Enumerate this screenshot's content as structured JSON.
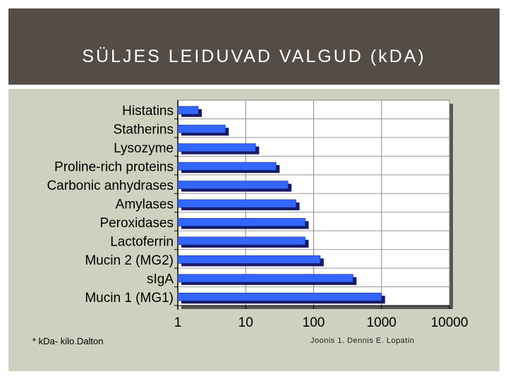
{
  "slide": {
    "title": "SÜLJES LEIDUVAD VALGUD (kDA)",
    "footnote": "* kDa- kilo.Dalton",
    "source": "Joonis 1. Dennis E. Lopatin"
  },
  "colors": {
    "header_bg": "#534c47",
    "panel_bg": "#cfd1c0",
    "plot_bg": "#ffffff",
    "bar_fill": "#3366ff",
    "bar_shadow": "#1a1a66"
  },
  "chart_data": {
    "type": "bar",
    "orientation": "horizontal",
    "x_scale": "log",
    "xlim": [
      1,
      10000
    ],
    "x_ticks": [
      "1",
      "10",
      "100",
      "1000",
      "10000"
    ],
    "grid": true,
    "legend": "none",
    "categories": [
      "Histatins",
      "Statherins",
      "Lysozyme",
      "Proline-rich proteins",
      "Carbonic anhydrases",
      "Amylases",
      "Peroxidases",
      "Lactoferrin",
      "Mucin 2 (MG2)",
      "sIgA",
      "Mucin 1 (MG1)"
    ],
    "values": [
      2,
      5,
      14,
      28,
      42,
      55,
      75,
      75,
      125,
      380,
      1000
    ]
  }
}
